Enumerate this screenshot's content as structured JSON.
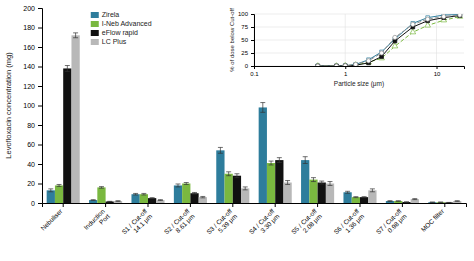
{
  "chart_data": [
    {
      "type": "bar",
      "categories": [
        "Nebuliser",
        "Induction\nPort",
        "S1 / Cut-off\n14.1 μm",
        "S2 / Cut-off\n8.61 μm",
        "S3 / Cut-off\n5.39 μm",
        "S4 / Cut-off\n3.30 μm",
        "S5 / Cut-off\n2.08 μm",
        "S6 / Cut-off\n1.36 μm",
        "S7 / Cut-off\n0.98 μm",
        "MOC filter"
      ],
      "series": [
        {
          "name": "Zirela",
          "color": "#2e7d9c",
          "values": [
            13,
            3,
            9,
            18,
            54,
            98,
            44,
            11,
            2,
            0.8
          ],
          "errors": [
            1.5,
            0.4,
            0.8,
            1.5,
            3,
            5,
            3.5,
            1,
            0.4,
            0.2
          ]
        },
        {
          "name": "I-Neb Advanced",
          "color": "#7ab840",
          "values": [
            18,
            16,
            9,
            20,
            30,
            41,
            24,
            6,
            2,
            0.8
          ],
          "errors": [
            1,
            0.8,
            0.8,
            1,
            2,
            2,
            2,
            0.5,
            0.3,
            0.2
          ]
        },
        {
          "name": "eFlow rapid",
          "color": "#111111",
          "values": [
            138,
            1.5,
            5,
            10,
            28,
            44,
            21,
            6,
            1,
            0.5
          ],
          "errors": [
            3,
            0.2,
            0.5,
            0.8,
            2,
            2.5,
            1.5,
            0.5,
            0.2,
            0.1
          ]
        },
        {
          "name": "LC Plus",
          "color": "#b8b8b8",
          "values": [
            172,
            2,
            3,
            6,
            15,
            21,
            20,
            13,
            4,
            2
          ],
          "errors": [
            2.5,
            0.3,
            0.4,
            0.7,
            1.5,
            2,
            2,
            1.5,
            0.5,
            0.3
          ]
        }
      ],
      "ylabel": "Levofloxacin concentration (mg)",
      "ylim": [
        0,
        200
      ],
      "yticks": [
        0,
        20,
        40,
        60,
        80,
        100,
        120,
        140,
        160,
        180,
        200
      ],
      "grid": false,
      "legend": "upper left"
    },
    {
      "type": "line",
      "x": [
        0.5,
        0.8,
        1.0,
        1.3,
        1.8,
        2.5,
        3.5,
        5.5,
        8.0,
        12.0,
        18.0
      ],
      "series": [
        {
          "color": "#2e7d9c",
          "marker": "square-open",
          "line_style": "solid",
          "values": [
            0,
            0,
            0.5,
            3,
            12,
            27,
            52,
            82,
            93,
            98,
            99
          ]
        },
        {
          "color": "#7ab840",
          "marker": "triangle-open",
          "line_style": "dashed",
          "values": [
            0,
            0,
            0.5,
            2,
            7,
            15,
            38,
            65,
            78,
            88,
            95
          ]
        },
        {
          "color": "#111111",
          "marker": "square",
          "line_style": "solid",
          "values": [
            0,
            0,
            0.3,
            1.5,
            6,
            18,
            48,
            75,
            87,
            93,
            97
          ]
        },
        {
          "color": "#909090",
          "marker": "circle-open",
          "line_style": "dashed",
          "values": [
            0,
            0,
            0.5,
            3,
            10,
            25,
            55,
            80,
            90,
            95,
            98
          ]
        }
      ],
      "xlabel": "Particle size (μm)",
      "ylabel": "% of dose below Cut-off",
      "log": "x",
      "xlim": [
        0.1,
        20
      ],
      "xticks": [
        0.1,
        1,
        10
      ],
      "ylim": [
        0,
        100
      ],
      "yticks": [
        0,
        25,
        50,
        75,
        100
      ],
      "grid": true
    }
  ]
}
